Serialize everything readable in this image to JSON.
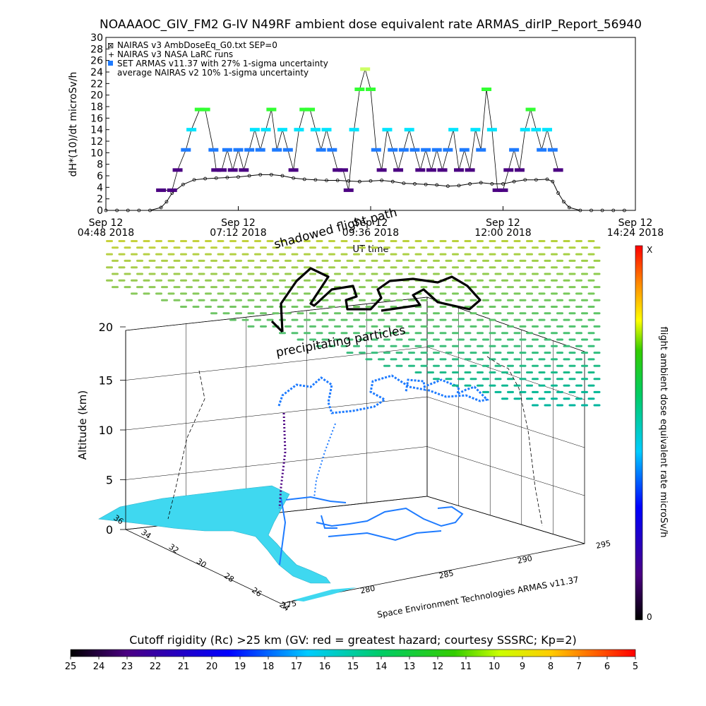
{
  "chart_data": [
    {
      "type": "line",
      "title": "NOAAAOC_GIV_FM2 G-IV    N49RF   ambient dose equivalent rate ARMAS_dirIP_Report_56940",
      "ylabel": "dH*(10)/dt microSv/h",
      "xlabel": "UT time",
      "ylim": [
        0,
        30
      ],
      "y_ticks": [
        "0",
        "2",
        "4",
        "6",
        "8",
        "10",
        "12",
        "14",
        "16",
        "18",
        "20",
        "22",
        "24",
        "26",
        "28",
        "30"
      ],
      "x_ticks": [
        {
          "line1": "Sep 12",
          "line2": "04:48 2018"
        },
        {
          "line1": "Sep 12",
          "line2": "07:12 2018"
        },
        {
          "line1": "Sep 12",
          "line2": "09:36 2018"
        },
        {
          "line1": "Sep 12",
          "line2": "12:00 2018"
        },
        {
          "line1": "Sep 12",
          "line2": "14:24 2018"
        }
      ],
      "legend": [
        {
          "symbol": "⊠",
          "label": "NAIRAS v3 AmbDoseEq_G0.txt SEP=0"
        },
        {
          "symbol": "+",
          "label": "NAIRAS v3 NASA LaRC runs"
        },
        {
          "symbol": "■",
          "label": "SET ARMAS v11.37 with 27% 1-sigma uncertainty"
        },
        {
          "symbol": "",
          "label": "average NAIRAS v2 10% 1-sigma uncertainty"
        }
      ],
      "legend_position": "top-left",
      "x_hours": [
        4.8,
        14.4
      ],
      "series": [
        {
          "name": "SET ARMAS v11.37 with 27% 1-sigma uncertainty",
          "hours": [
            5.8,
            6.0,
            6.1,
            6.25,
            6.35,
            6.5,
            6.6,
            6.75,
            6.8,
            6.9,
            7.0,
            7.1,
            7.2,
            7.3,
            7.4,
            7.5,
            7.6,
            7.7,
            7.8,
            7.9,
            8.0,
            8.1,
            8.2,
            8.3,
            8.4,
            8.5,
            8.6,
            8.7,
            8.8,
            8.9,
            9.0,
            9.1,
            9.2,
            9.3,
            9.4,
            9.5,
            9.6,
            9.7,
            9.8,
            9.9,
            10.0,
            10.1,
            10.2,
            10.3,
            10.4,
            10.5,
            10.6,
            10.7,
            10.8,
            10.9,
            11.0,
            11.1,
            11.2,
            11.3,
            11.4,
            11.5,
            11.6,
            11.7,
            11.8,
            11.9,
            12.0,
            12.1,
            12.2,
            12.3,
            12.4,
            12.5,
            12.6,
            12.7,
            12.8,
            12.9,
            13.0
          ],
          "values": [
            3.5,
            3.5,
            7.0,
            10.5,
            14.0,
            17.5,
            17.5,
            10.5,
            7.0,
            7.0,
            10.5,
            7.0,
            10.5,
            7.0,
            10.5,
            14.0,
            10.5,
            14.0,
            17.5,
            10.5,
            14.0,
            10.5,
            7.0,
            14.0,
            17.5,
            17.5,
            14.0,
            10.5,
            14.0,
            10.5,
            7.0,
            7.0,
            3.5,
            14.0,
            21.0,
            24.5,
            21.0,
            10.5,
            7.0,
            14.0,
            10.5,
            7.0,
            10.5,
            14.0,
            10.5,
            7.0,
            10.5,
            7.0,
            10.5,
            7.0,
            10.5,
            14.0,
            7.0,
            10.5,
            7.0,
            14.0,
            10.5,
            21.0,
            14.0,
            3.5,
            3.5,
            7.0,
            10.5,
            7.0,
            14.0,
            17.5,
            14.0,
            10.5,
            14.0,
            10.5,
            7.0
          ]
        },
        {
          "name": "NAIRAS v3 AmbDoseEq_G0.txt SEP=0",
          "hours": [
            4.8,
            5.0,
            5.2,
            5.4,
            5.6,
            5.8,
            5.9,
            6.0,
            6.2,
            6.4,
            6.6,
            6.8,
            7.0,
            7.2,
            7.4,
            7.6,
            7.8,
            8.0,
            8.2,
            8.4,
            8.6,
            8.8,
            9.0,
            9.2,
            9.4,
            9.6,
            9.8,
            10.0,
            10.2,
            10.4,
            10.6,
            10.8,
            11.0,
            11.2,
            11.4,
            11.6,
            11.8,
            12.0,
            12.2,
            12.4,
            12.6,
            12.8,
            12.9,
            13.0,
            13.1,
            13.2,
            13.4,
            13.6,
            13.8,
            14.0,
            14.2
          ],
          "values": [
            0,
            0,
            0,
            0,
            0,
            0.5,
            1.5,
            3.0,
            4.5,
            5.3,
            5.5,
            5.6,
            5.7,
            5.8,
            6.0,
            6.2,
            6.2,
            6.0,
            5.6,
            5.4,
            5.3,
            5.2,
            5.2,
            5.1,
            5.0,
            5.1,
            5.2,
            5.0,
            4.7,
            4.6,
            4.5,
            4.4,
            4.2,
            4.3,
            4.6,
            4.8,
            4.6,
            4.6,
            5.0,
            5.3,
            5.3,
            5.4,
            5.0,
            3.0,
            1.5,
            0.5,
            0,
            0,
            0,
            0,
            0
          ]
        }
      ]
    },
    {
      "type": "scatter",
      "subtype": "3d-flight-track",
      "zlabel": "Altitude (km)",
      "z_ticks": [
        "0",
        "5",
        "10",
        "15",
        "20"
      ],
      "lat_ticks": [
        "36",
        "34",
        "32",
        "30",
        "28",
        "26",
        "24"
      ],
      "lon_ticks": [
        "275",
        "280",
        "285",
        "290",
        "295"
      ],
      "footer_label": "Space Environment Technologies ARMAS v11.37",
      "annotations": [
        "shadowed flight path",
        "precipitating particles"
      ],
      "colorbar": {
        "label": "flight ambient dose equivalent rate microSv/h",
        "max_label": "X",
        "min_label": "0"
      }
    },
    {
      "type": "heatmap",
      "subtype": "colorbar",
      "title": "Cutoff rigidity (Rc) >25 km (GV: red = greatest hazard; courtesy SSSRC; Kp=2)",
      "ticks": [
        "25",
        "24",
        "23",
        "22",
        "21",
        "20",
        "19",
        "18",
        "17",
        "16",
        "15",
        "14",
        "13",
        "12",
        "11",
        "10",
        "9",
        "8",
        "7",
        "6",
        "5"
      ]
    }
  ],
  "colors": {
    "armas_mid": "#1e7bff",
    "armas_low": "#4b0082",
    "armas_high": "#00e5ff",
    "armas_peak": "#33ff33",
    "nairas": "#000000",
    "land": "#3fd8f0",
    "grid_cap": "#ccff66"
  }
}
